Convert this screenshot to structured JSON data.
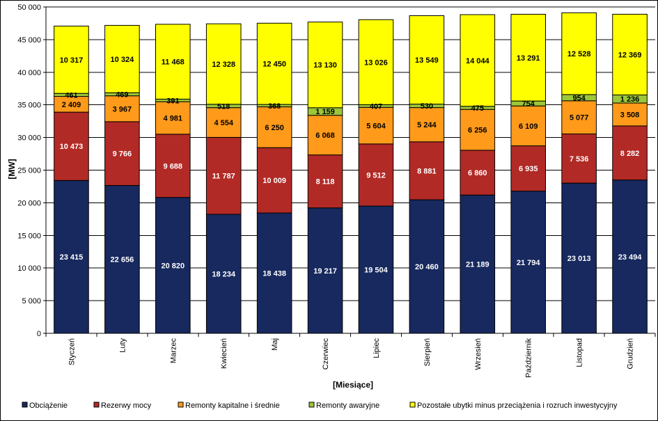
{
  "chart_data": {
    "type": "bar",
    "stacked": true,
    "xlabel": "[Miesiące]",
    "ylabel": "[MW]",
    "ylim": [
      0,
      50000
    ],
    "ytick_step": 5000,
    "ytick_labels": [
      "0",
      "5 000",
      "10 000",
      "15 000",
      "20 000",
      "25 000",
      "30 000",
      "35 000",
      "40 000",
      "45 000",
      "50 000"
    ],
    "grid": true,
    "legend_position": "bottom",
    "categories": [
      "Styczeń",
      "Luty",
      "Marzec",
      "Kwiecień",
      "Maj",
      "Czerwiec",
      "Lipiec",
      "Sierpień",
      "Wrzesień",
      "Październik",
      "Listopad",
      "Grudzień"
    ],
    "series": [
      {
        "name": "Obciążenie",
        "color": "#17295e",
        "label_color": "#ffffff",
        "values": [
          23415,
          22656,
          20820,
          18234,
          18438,
          19217,
          19504,
          20460,
          21189,
          21794,
          23013,
          23494
        ],
        "labels": [
          "23 415",
          "22 656",
          "20 820",
          "18 234",
          "18 438",
          "19 217",
          "19 504",
          "20 460",
          "21 189",
          "21 794",
          "23 013",
          "23 494"
        ]
      },
      {
        "name": "Rezerwy mocy",
        "color": "#b22a26",
        "label_color": "#ffffff",
        "values": [
          10473,
          9766,
          9688,
          11787,
          10009,
          8118,
          9512,
          8881,
          6860,
          6935,
          7536,
          8282
        ],
        "labels": [
          "10 473",
          "9 766",
          "9 688",
          "11 787",
          "10 009",
          "8 118",
          "9 512",
          "8 881",
          "6 860",
          "6 935",
          "7 536",
          "8 282"
        ]
      },
      {
        "name": "Remonty kapitalne i średnie",
        "color": "#ff9a1a",
        "label_color": "#000000",
        "values": [
          2409,
          3967,
          4981,
          4554,
          6250,
          6068,
          5604,
          5244,
          6256,
          6109,
          5077,
          3508
        ],
        "labels": [
          "2 409",
          "3 967",
          "4 981",
          "4 554",
          "6 250",
          "6 068",
          "5 604",
          "5 244",
          "6 256",
          "6 109",
          "5 077",
          "3 508"
        ]
      },
      {
        "name": "Remonty awaryjne",
        "color": "#9bc739",
        "label_color": "#000000",
        "values": [
          461,
          469,
          391,
          518,
          368,
          1159,
          407,
          530,
          475,
          754,
          954,
          1236
        ],
        "labels": [
          "461",
          "469",
          "391",
          "518",
          "368",
          "1 159",
          "407",
          "530",
          "475",
          "754",
          "954",
          "1 236"
        ]
      },
      {
        "name": "Pozostałe ubytki minus przeciążenia i rozruch inwestycyjny",
        "color": "#ffff00",
        "label_color": "#000000",
        "values": [
          10317,
          10324,
          11468,
          12328,
          12450,
          13130,
          13026,
          13549,
          14044,
          13291,
          12528,
          12369
        ],
        "labels": [
          "10 317",
          "10 324",
          "11 468",
          "12 328",
          "12 450",
          "13 130",
          "13 026",
          "13 549",
          "14 044",
          "13 291",
          "12 528",
          "12 369"
        ]
      }
    ]
  }
}
